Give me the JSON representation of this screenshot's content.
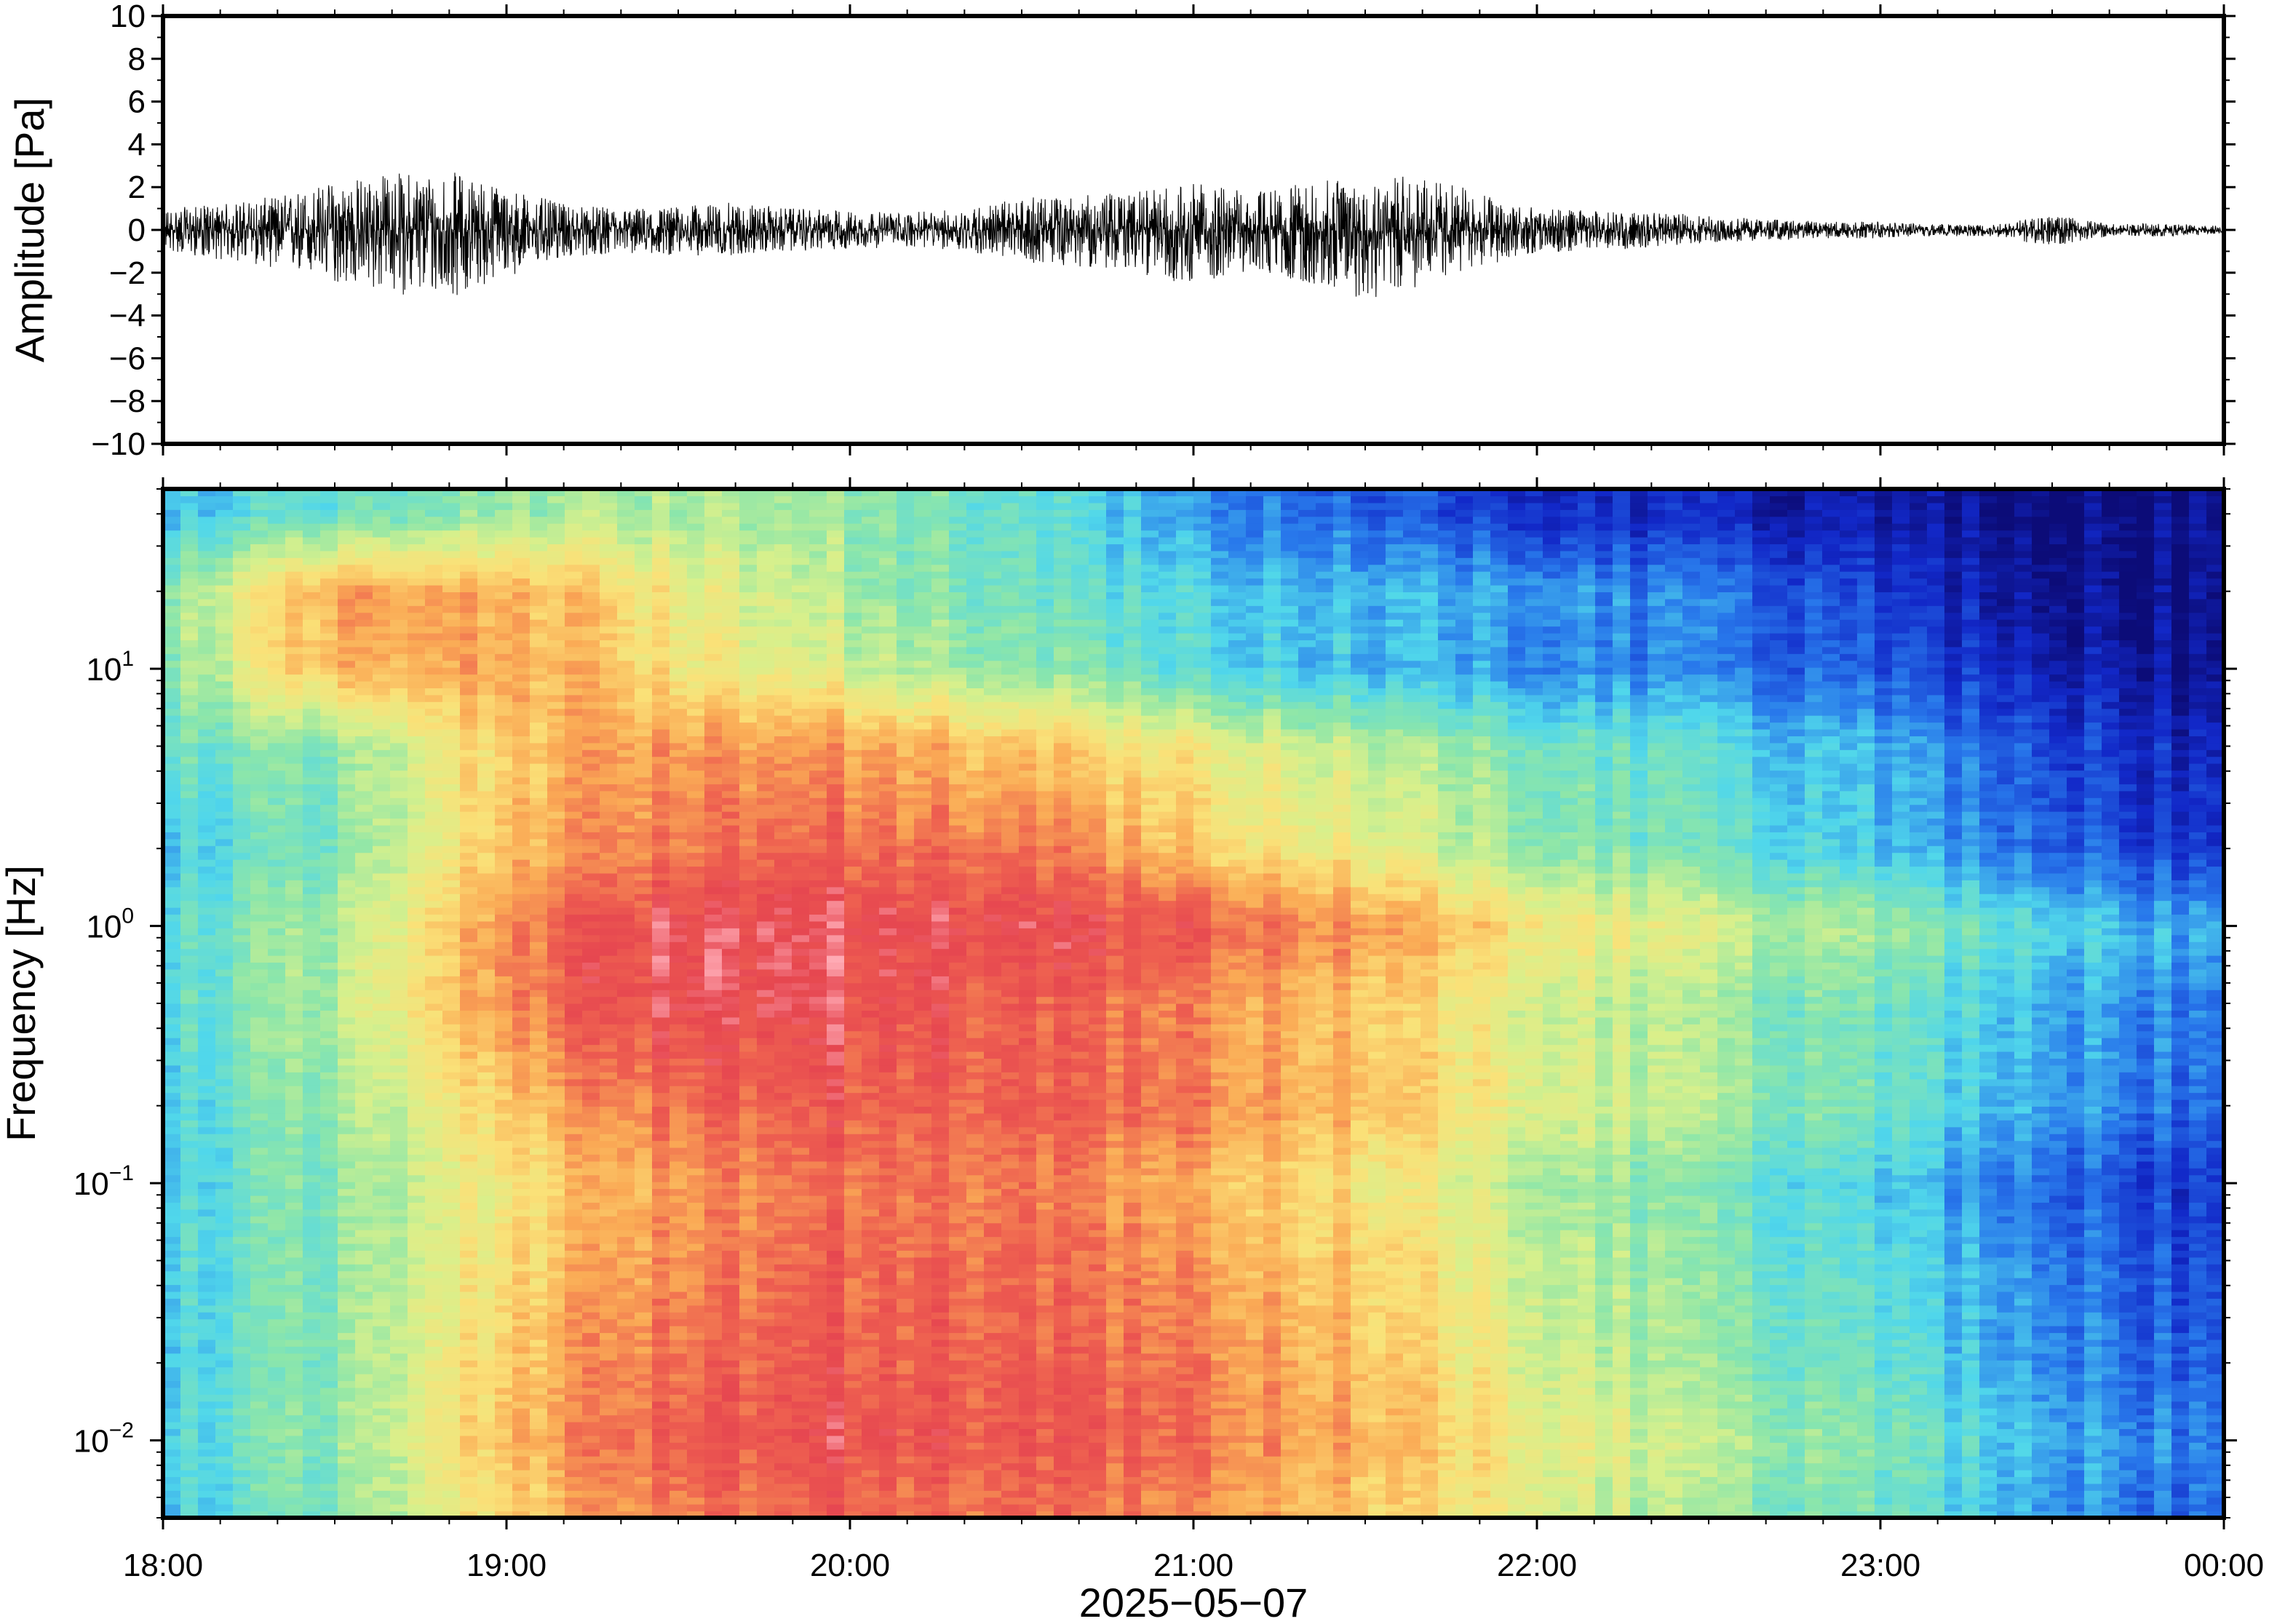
{
  "chart_data": [
    {
      "type": "line",
      "ylabel": "Amplitude [Pa]",
      "ylim": [
        -10,
        10
      ],
      "yticks": [
        {
          "value": 10,
          "label": "10"
        },
        {
          "value": 8,
          "label": "8"
        },
        {
          "value": 6,
          "label": "6"
        },
        {
          "value": 4,
          "label": "4"
        },
        {
          "value": 2,
          "label": "2"
        },
        {
          "value": 0,
          "label": "0"
        },
        {
          "value": -2,
          "label": "−2"
        },
        {
          "value": -4,
          "label": "−4"
        },
        {
          "value": -6,
          "label": "−6"
        },
        {
          "value": -8,
          "label": "−8"
        },
        {
          "value": -10,
          "label": "−10"
        }
      ],
      "x_range": [
        "2025-05-07T18:00",
        "2025-05-08T00:00"
      ],
      "envelope": {
        "x": [
          "18:00",
          "18:10",
          "18:20",
          "18:30",
          "18:40",
          "18:50",
          "19:00",
          "19:10",
          "19:20",
          "19:30",
          "19:40",
          "19:50",
          "20:00",
          "20:10",
          "20:20",
          "20:30",
          "20:40",
          "20:50",
          "21:00",
          "21:10",
          "21:20",
          "21:30",
          "21:40",
          "21:50",
          "22:00",
          "22:10",
          "22:20",
          "22:30",
          "22:40",
          "22:50",
          "23:00",
          "23:10",
          "23:20",
          "23:30",
          "23:40",
          "23:50",
          "00:00"
        ],
        "upper": [
          1.0,
          1.2,
          1.6,
          2.3,
          2.7,
          2.8,
          2.0,
          1.2,
          1.0,
          1.1,
          1.3,
          1.0,
          0.9,
          0.8,
          1.0,
          1.5,
          1.6,
          1.8,
          2.2,
          1.8,
          2.2,
          2.6,
          2.5,
          1.8,
          1.0,
          0.9,
          0.8,
          0.7,
          0.5,
          0.4,
          0.4,
          0.3,
          0.3,
          0.7,
          0.3,
          0.3,
          0.2
        ],
        "lower": [
          -1.0,
          -1.4,
          -1.8,
          -2.5,
          -3.0,
          -3.2,
          -2.2,
          -1.3,
          -1.1,
          -1.2,
          -1.2,
          -1.0,
          -0.9,
          -0.8,
          -1.0,
          -1.5,
          -1.7,
          -2.0,
          -2.6,
          -1.9,
          -2.5,
          -3.3,
          -2.7,
          -1.7,
          -1.1,
          -1.0,
          -0.8,
          -0.6,
          -0.5,
          -0.4,
          -0.4,
          -0.3,
          -0.3,
          -0.8,
          -0.3,
          -0.3,
          -0.2
        ]
      }
    },
    {
      "type": "heatmap",
      "ylabel": "Frequency [Hz]",
      "xlabel": "2025−05−07",
      "y_scale": "log",
      "ylim": [
        0.005,
        50
      ],
      "yticks": [
        {
          "value": 10,
          "base": "10",
          "exp": "1"
        },
        {
          "value": 1,
          "base": "10",
          "exp": "0"
        },
        {
          "value": 0.1,
          "base": "10",
          "exp": "−1"
        },
        {
          "value": 0.01,
          "base": "10",
          "exp": "−2"
        }
      ],
      "xticks": [
        {
          "value": 0,
          "label": "18:00"
        },
        {
          "value": 1,
          "label": "19:00"
        },
        {
          "value": 2,
          "label": "20:00"
        },
        {
          "value": 3,
          "label": "21:00"
        },
        {
          "value": 4,
          "label": "22:00"
        },
        {
          "value": 5,
          "label": "23:00"
        },
        {
          "value": 6,
          "label": "00:00"
        }
      ],
      "x_range": [
        "2025-05-07T18:00",
        "2025-05-08T00:00"
      ],
      "colormap": "rainbow",
      "frequency_axis": [
        0.006,
        0.01,
        0.02,
        0.05,
        0.1,
        0.2,
        0.5,
        1,
        2,
        5,
        10,
        20,
        40
      ],
      "time_axis": [
        "18:00",
        "18:30",
        "19:00",
        "19:30",
        "20:00",
        "20:30",
        "21:00",
        "21:30",
        "22:00",
        "22:30",
        "23:00",
        "23:30",
        "00:00"
      ],
      "intensity": [
        [
          0.32,
          0.45,
          0.68,
          0.85,
          0.86,
          0.84,
          0.8,
          0.7,
          0.6,
          0.48,
          0.4,
          0.28,
          0.18
        ],
        [
          0.34,
          0.47,
          0.72,
          0.9,
          0.91,
          0.88,
          0.84,
          0.74,
          0.63,
          0.52,
          0.43,
          0.3,
          0.2
        ],
        [
          0.33,
          0.46,
          0.7,
          0.86,
          0.88,
          0.86,
          0.82,
          0.72,
          0.58,
          0.46,
          0.38,
          0.26,
          0.16
        ],
        [
          0.34,
          0.46,
          0.66,
          0.82,
          0.86,
          0.84,
          0.78,
          0.68,
          0.56,
          0.44,
          0.35,
          0.24,
          0.12
        ],
        [
          0.33,
          0.46,
          0.64,
          0.8,
          0.84,
          0.82,
          0.74,
          0.64,
          0.52,
          0.42,
          0.32,
          0.2,
          0.1
        ],
        [
          0.33,
          0.48,
          0.7,
          0.86,
          0.88,
          0.86,
          0.82,
          0.72,
          0.6,
          0.5,
          0.4,
          0.28,
          0.18
        ],
        [
          0.36,
          0.52,
          0.8,
          0.95,
          0.92,
          0.86,
          0.8,
          0.7,
          0.58,
          0.48,
          0.4,
          0.3,
          0.2
        ],
        [
          0.36,
          0.5,
          0.8,
          0.96,
          0.94,
          0.92,
          0.88,
          0.78,
          0.66,
          0.56,
          0.48,
          0.36,
          0.26
        ],
        [
          0.32,
          0.44,
          0.72,
          0.84,
          0.86,
          0.82,
          0.7,
          0.6,
          0.48,
          0.4,
          0.3,
          0.2,
          0.1
        ],
        [
          0.4,
          0.46,
          0.7,
          0.8,
          0.78,
          0.7,
          0.62,
          0.52,
          0.44,
          0.36,
          0.28,
          0.16,
          0.06
        ],
        [
          0.44,
          0.74,
          0.76,
          0.66,
          0.56,
          0.46,
          0.36,
          0.3,
          0.26,
          0.22,
          0.16,
          0.08,
          0.02
        ],
        [
          0.46,
          0.78,
          0.74,
          0.64,
          0.5,
          0.4,
          0.34,
          0.3,
          0.28,
          0.22,
          0.12,
          0.04,
          0.01
        ],
        [
          0.3,
          0.4,
          0.48,
          0.52,
          0.48,
          0.38,
          0.26,
          0.18,
          0.12,
          0.08,
          0.04,
          0.02,
          0.02
        ]
      ]
    }
  ]
}
